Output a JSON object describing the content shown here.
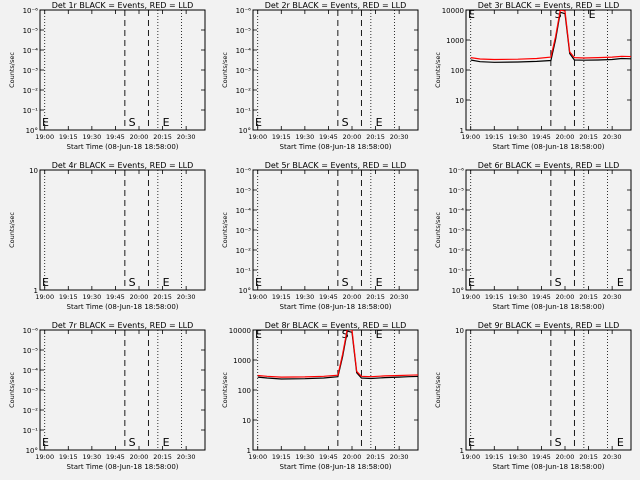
{
  "colors": {
    "background": "#f2f2f2",
    "events": "#000000",
    "lld": "#ff0000"
  },
  "xlabel": "Start Time (08-Jun-18 18:58:00)",
  "ylabel": "Counts/sec",
  "x_ticks": [
    "19:00",
    "19:15",
    "19:30",
    "19:45",
    "20:00",
    "20:15",
    "20:30"
  ],
  "x_ticks_short": [
    "19:00",
    "19:15",
    "19:30",
    "19:45",
    "20:00",
    "20:15",
    "20:30"
  ],
  "markers": {
    "start": "S",
    "end": "E"
  },
  "chart_data": [
    {
      "title": "Det 1r BLACK = Events, RED = LLD",
      "type": "line",
      "yscale": "log",
      "ylim": [
        0.9,
        1.1
      ],
      "y_ticks": [
        "10°",
        "10⁻¹",
        "10⁻²",
        "10⁻³",
        "10⁻⁴",
        "10⁻⁵",
        "10⁻⁶"
      ],
      "series": []
    },
    {
      "title": "Det 2r BLACK = Events, RED = LLD",
      "type": "line",
      "yscale": "log",
      "ylim": [
        0.9,
        1.1
      ],
      "y_ticks": [
        "10°",
        "10⁻¹",
        "10⁻²",
        "10⁻³",
        "10⁻⁴",
        "10⁻⁵",
        "10⁻⁶"
      ],
      "series": []
    },
    {
      "title": "Det 3r BLACK = Events, RED = LLD",
      "type": "line",
      "yscale": "log",
      "ylim": [
        1,
        12000
      ],
      "y_ticks": [
        "1",
        "10",
        "100",
        "1000",
        "10000"
      ],
      "series": [
        {
          "color": "#000000",
          "x": [
            19.0,
            19.1,
            19.25,
            19.5,
            19.7,
            19.85,
            19.9,
            19.95,
            20.0,
            20.05,
            20.1,
            20.2,
            20.35,
            20.5,
            20.6,
            20.75
          ],
          "y": [
            240,
            210,
            200,
            205,
            215,
            230,
            1200,
            10000,
            9000,
            400,
            240,
            235,
            240,
            250,
            270,
            260
          ]
        },
        {
          "color": "#ff0000",
          "x": [
            19.0,
            19.1,
            19.25,
            19.5,
            19.7,
            19.85,
            19.9,
            19.95,
            20.0,
            20.05,
            20.1,
            20.2,
            20.35,
            20.5,
            20.6,
            20.75
          ],
          "y": [
            290,
            260,
            250,
            255,
            270,
            300,
            1500,
            12000,
            11000,
            450,
            290,
            280,
            290,
            300,
            320,
            310
          ]
        }
      ]
    },
    {
      "title": "Det 4r BLACK = Events, RED = LLD",
      "type": "line",
      "yscale": "log",
      "ylim": [
        1,
        10
      ],
      "y_ticks": [
        "1",
        "10"
      ],
      "series": []
    },
    {
      "title": "Det 5r BLACK = Events, RED = LLD",
      "type": "line",
      "yscale": "log",
      "ylim": [
        0.9,
        1.1
      ],
      "y_ticks": [
        "10°",
        "10⁻¹",
        "10⁻²",
        "10⁻³",
        "10⁻⁴",
        "10⁻⁵",
        "10⁻⁶"
      ],
      "series": []
    },
    {
      "title": "Det 6r BLACK = Events, RED = LLD",
      "type": "line",
      "yscale": "log",
      "ylim": [
        0.9,
        1.1
      ],
      "y_ticks": [
        "10°",
        "10⁻¹",
        "10⁻²",
        "10⁻³",
        "10⁻⁴",
        "10⁻⁵",
        "10⁻⁶"
      ],
      "series": []
    },
    {
      "title": "Det 7r BLACK = Events, RED = LLD",
      "type": "line",
      "yscale": "log",
      "ylim": [
        0.9,
        1.1
      ],
      "y_ticks": [
        "10°",
        "10⁻¹",
        "10⁻²",
        "10⁻³",
        "10⁻⁴",
        "10⁻⁵",
        "10⁻⁶"
      ],
      "series": []
    },
    {
      "title": "Det 8r BLACK = Events, RED = LLD",
      "type": "line",
      "yscale": "log",
      "ylim": [
        1,
        12000
      ],
      "y_ticks": [
        "1",
        "10",
        "100",
        "1000",
        "10000"
      ],
      "series": [
        {
          "color": "#000000",
          "x": [
            19.0,
            19.1,
            19.25,
            19.5,
            19.7,
            19.85,
            19.9,
            19.95,
            20.0,
            20.05,
            20.1,
            20.2,
            20.35,
            20.5,
            20.6,
            20.75
          ],
          "y": [
            300,
            280,
            260,
            265,
            280,
            310,
            1500,
            11000,
            10000,
            420,
            280,
            270,
            290,
            300,
            310,
            320
          ]
        },
        {
          "color": "#ff0000",
          "x": [
            19.0,
            19.1,
            19.25,
            19.5,
            19.7,
            19.85,
            19.9,
            19.95,
            20.0,
            20.05,
            20.1,
            20.2,
            20.35,
            20.5,
            20.6,
            20.75
          ],
          "y": [
            340,
            320,
            300,
            305,
            320,
            350,
            1800,
            13000,
            12000,
            470,
            320,
            310,
            330,
            340,
            350,
            360
          ]
        }
      ]
    },
    {
      "title": "Det 9r BLACK = Events, RED = LLD",
      "type": "line",
      "yscale": "log",
      "ylim": [
        1,
        10
      ],
      "y_ticks": [
        "1",
        "10"
      ],
      "series": []
    }
  ]
}
